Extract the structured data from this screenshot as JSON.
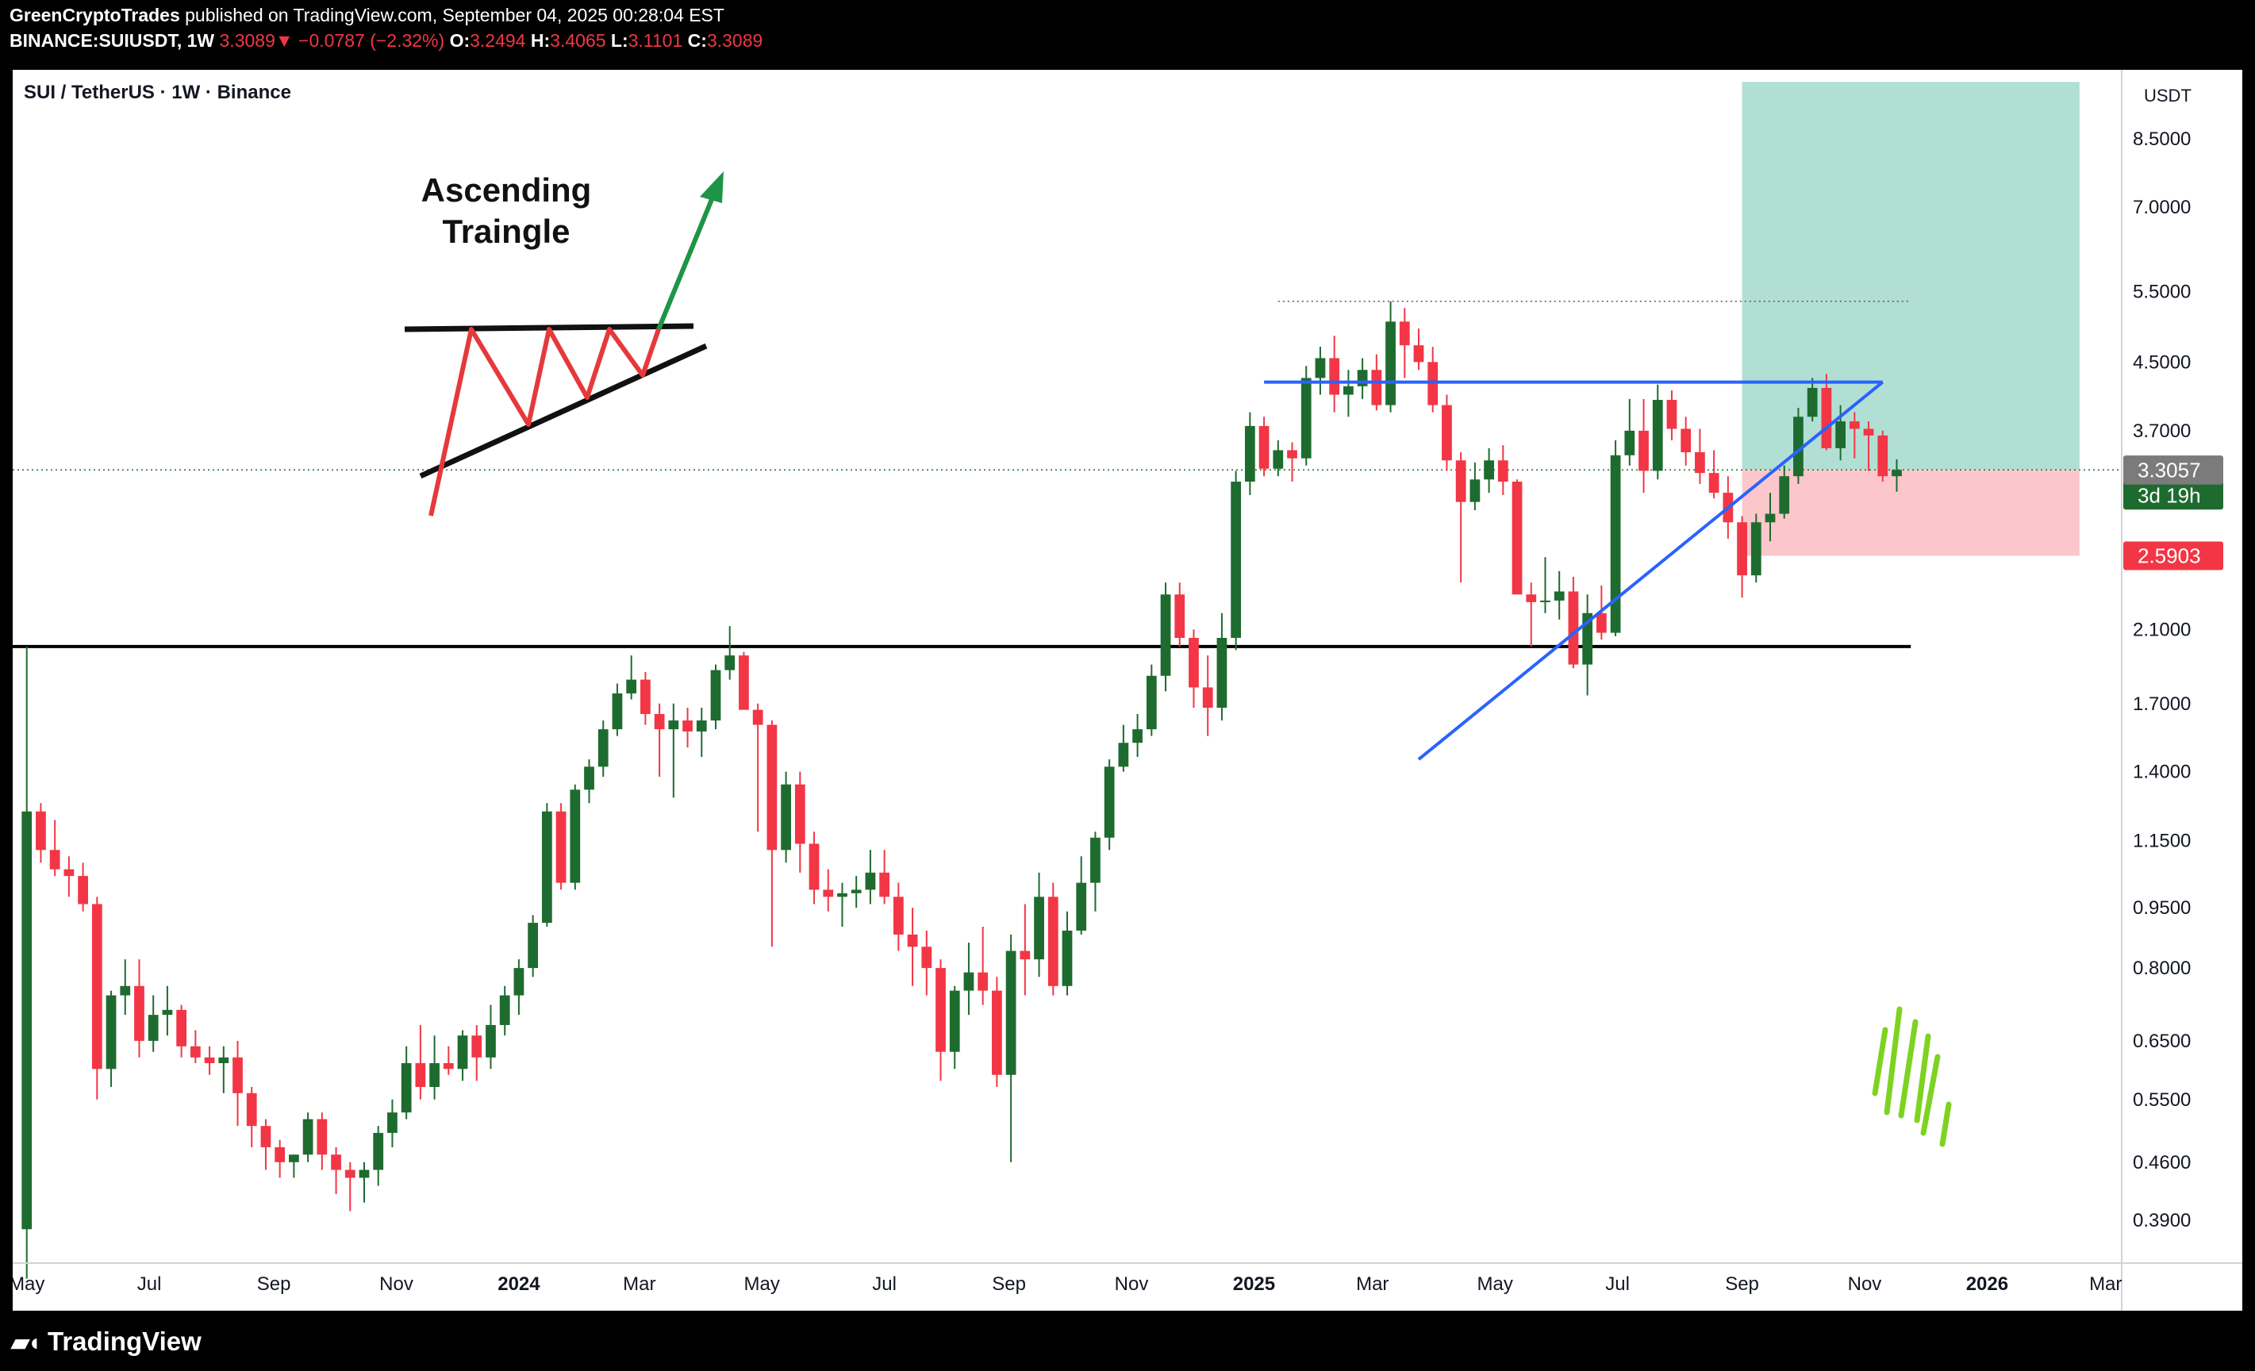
{
  "header": {
    "author": "GreenCryptoTrades",
    "published": " published on TradingView.com, September 04, 2025 00:28:04 EST",
    "symbol": "BINANCE:SUIUSDT, 1W",
    "last": "3.3089",
    "change": "−0.0787 (−2.32%)",
    "o_label": "O:",
    "o_val": "3.2494",
    "h_label": "H:",
    "h_val": "3.4065",
    "l_label": "L:",
    "l_val": "3.1101",
    "c_label": "C:",
    "c_val": "3.3089"
  },
  "chart_title": "SUI / TetherUS · 1W · Binance",
  "branding": "TradingView",
  "colors": {
    "up": "#1e6b2f",
    "down": "#f23645",
    "trendline": "#2962ff",
    "target_zone": "#b2dfd4",
    "stop_zone": "#fbc7cb",
    "support": "#000000"
  },
  "chart_data": {
    "type": "candlestick",
    "scale": "log",
    "currency": "USDT",
    "ylim": [
      0.345,
      10.35
    ],
    "x_range": [
      "2023-04-24",
      "2026-03-09"
    ],
    "price_ticks": [
      "8.5000",
      "7.0000",
      "5.5000",
      "4.5000",
      "3.7000",
      "3.3089",
      "3.3057",
      "2.5903",
      "2.1000",
      "1.7000",
      "1.4000",
      "1.1500",
      "0.9500",
      "0.8000",
      "0.6500",
      "0.5500",
      "0.4600",
      "0.3900"
    ],
    "time_ticks": [
      {
        "date": "2023-05-01",
        "label": "May",
        "bold": false
      },
      {
        "date": "2023-07-01",
        "label": "Jul",
        "bold": false
      },
      {
        "date": "2023-09-01",
        "label": "Sep",
        "bold": false
      },
      {
        "date": "2023-11-01",
        "label": "Nov",
        "bold": false
      },
      {
        "date": "2024-01-01",
        "label": "2024",
        "bold": true
      },
      {
        "date": "2024-03-01",
        "label": "Mar",
        "bold": false
      },
      {
        "date": "2024-05-01",
        "label": "May",
        "bold": false
      },
      {
        "date": "2024-07-01",
        "label": "Jul",
        "bold": false
      },
      {
        "date": "2024-09-01",
        "label": "Sep",
        "bold": false
      },
      {
        "date": "2024-11-01",
        "label": "Nov",
        "bold": false
      },
      {
        "date": "2025-01-01",
        "label": "2025",
        "bold": true
      },
      {
        "date": "2025-03-01",
        "label": "Mar",
        "bold": false
      },
      {
        "date": "2025-05-01",
        "label": "May",
        "bold": false
      },
      {
        "date": "2025-07-01",
        "label": "Jul",
        "bold": false
      },
      {
        "date": "2025-09-01",
        "label": "Sep",
        "bold": false
      },
      {
        "date": "2025-11-01",
        "label": "Nov",
        "bold": false
      },
      {
        "date": "2026-01-01",
        "label": "2026",
        "bold": true
      },
      {
        "date": "2026-03-01",
        "label": "Mar",
        "bold": false
      }
    ],
    "start_date": "2023-05-01",
    "candle_interval_days": 7,
    "candles": [
      [
        0.38,
        2.0,
        0.33,
        1.25
      ],
      [
        1.25,
        1.28,
        1.08,
        1.12
      ],
      [
        1.12,
        1.22,
        1.04,
        1.06
      ],
      [
        1.06,
        1.1,
        0.98,
        1.04
      ],
      [
        1.04,
        1.08,
        0.94,
        0.96
      ],
      [
        0.96,
        0.98,
        0.55,
        0.6
      ],
      [
        0.6,
        0.75,
        0.57,
        0.74
      ],
      [
        0.74,
        0.82,
        0.7,
        0.76
      ],
      [
        0.76,
        0.82,
        0.62,
        0.65
      ],
      [
        0.65,
        0.74,
        0.63,
        0.7
      ],
      [
        0.7,
        0.76,
        0.66,
        0.71
      ],
      [
        0.71,
        0.72,
        0.62,
        0.64
      ],
      [
        0.64,
        0.67,
        0.61,
        0.62
      ],
      [
        0.62,
        0.64,
        0.59,
        0.61
      ],
      [
        0.61,
        0.64,
        0.56,
        0.62
      ],
      [
        0.62,
        0.65,
        0.51,
        0.56
      ],
      [
        0.56,
        0.57,
        0.48,
        0.51
      ],
      [
        0.51,
        0.52,
        0.45,
        0.48
      ],
      [
        0.48,
        0.49,
        0.44,
        0.46
      ],
      [
        0.46,
        0.47,
        0.44,
        0.47
      ],
      [
        0.47,
        0.53,
        0.46,
        0.52
      ],
      [
        0.52,
        0.53,
        0.45,
        0.47
      ],
      [
        0.47,
        0.48,
        0.42,
        0.45
      ],
      [
        0.45,
        0.46,
        0.4,
        0.44
      ],
      [
        0.44,
        0.46,
        0.41,
        0.45
      ],
      [
        0.45,
        0.51,
        0.43,
        0.5
      ],
      [
        0.5,
        0.55,
        0.48,
        0.53
      ],
      [
        0.53,
        0.64,
        0.52,
        0.61
      ],
      [
        0.61,
        0.68,
        0.55,
        0.57
      ],
      [
        0.57,
        0.66,
        0.55,
        0.61
      ],
      [
        0.61,
        0.64,
        0.59,
        0.6
      ],
      [
        0.6,
        0.67,
        0.58,
        0.66
      ],
      [
        0.66,
        0.68,
        0.58,
        0.62
      ],
      [
        0.62,
        0.72,
        0.6,
        0.68
      ],
      [
        0.68,
        0.76,
        0.66,
        0.74
      ],
      [
        0.74,
        0.82,
        0.7,
        0.8
      ],
      [
        0.8,
        0.93,
        0.78,
        0.91
      ],
      [
        0.91,
        1.28,
        0.9,
        1.25
      ],
      [
        1.25,
        1.28,
        1.0,
        1.02
      ],
      [
        1.02,
        1.35,
        1.0,
        1.33
      ],
      [
        1.33,
        1.45,
        1.28,
        1.42
      ],
      [
        1.42,
        1.62,
        1.38,
        1.58
      ],
      [
        1.58,
        1.8,
        1.55,
        1.75
      ],
      [
        1.75,
        1.95,
        1.72,
        1.82
      ],
      [
        1.82,
        1.86,
        1.6,
        1.65
      ],
      [
        1.65,
        1.7,
        1.38,
        1.58
      ],
      [
        1.58,
        1.7,
        1.3,
        1.62
      ],
      [
        1.62,
        1.68,
        1.5,
        1.57
      ],
      [
        1.57,
        1.68,
        1.46,
        1.62
      ],
      [
        1.62,
        1.9,
        1.58,
        1.87
      ],
      [
        1.87,
        2.12,
        1.82,
        1.95
      ],
      [
        1.95,
        1.97,
        1.7,
        1.67
      ],
      [
        1.67,
        1.7,
        1.18,
        1.6
      ],
      [
        1.6,
        1.62,
        0.85,
        1.12
      ],
      [
        1.12,
        1.4,
        1.08,
        1.35
      ],
      [
        1.35,
        1.4,
        1.05,
        1.14
      ],
      [
        1.14,
        1.18,
        0.96,
        1.0
      ],
      [
        1.0,
        1.06,
        0.94,
        0.98
      ],
      [
        0.98,
        1.02,
        0.9,
        0.99
      ],
      [
        0.99,
        1.04,
        0.95,
        1.0
      ],
      [
        1.0,
        1.12,
        0.96,
        1.05
      ],
      [
        1.05,
        1.12,
        0.96,
        0.98
      ],
      [
        0.98,
        1.02,
        0.84,
        0.88
      ],
      [
        0.88,
        0.95,
        0.76,
        0.85
      ],
      [
        0.85,
        0.89,
        0.74,
        0.8
      ],
      [
        0.8,
        0.82,
        0.58,
        0.63
      ],
      [
        0.63,
        0.76,
        0.6,
        0.75
      ],
      [
        0.75,
        0.86,
        0.7,
        0.79
      ],
      [
        0.79,
        0.9,
        0.72,
        0.75
      ],
      [
        0.75,
        0.78,
        0.57,
        0.59
      ],
      [
        0.59,
        0.88,
        0.46,
        0.84
      ],
      [
        0.84,
        0.96,
        0.74,
        0.82
      ],
      [
        0.82,
        1.05,
        0.78,
        0.98
      ],
      [
        0.98,
        1.02,
        0.74,
        0.76
      ],
      [
        0.76,
        0.94,
        0.74,
        0.89
      ],
      [
        0.89,
        1.1,
        0.88,
        1.02
      ],
      [
        1.02,
        1.18,
        0.94,
        1.16
      ],
      [
        1.16,
        1.45,
        1.12,
        1.42
      ],
      [
        1.42,
        1.6,
        1.4,
        1.52
      ],
      [
        1.52,
        1.65,
        1.46,
        1.58
      ],
      [
        1.58,
        1.9,
        1.55,
        1.84
      ],
      [
        1.84,
        2.4,
        1.76,
        2.32
      ],
      [
        2.32,
        2.4,
        2.0,
        2.05
      ],
      [
        2.05,
        2.1,
        1.68,
        1.78
      ],
      [
        1.78,
        1.95,
        1.55,
        1.68
      ],
      [
        1.68,
        2.2,
        1.62,
        2.05
      ],
      [
        2.05,
        3.3,
        1.98,
        3.2
      ],
      [
        3.2,
        3.9,
        3.08,
        3.75
      ],
      [
        3.75,
        3.85,
        3.25,
        3.32
      ],
      [
        3.32,
        3.6,
        3.25,
        3.5
      ],
      [
        3.5,
        3.58,
        3.2,
        3.42
      ],
      [
        3.42,
        4.45,
        3.35,
        4.3
      ],
      [
        4.3,
        4.7,
        4.1,
        4.55
      ],
      [
        4.55,
        4.85,
        3.9,
        4.1
      ],
      [
        4.1,
        4.4,
        3.85,
        4.2
      ],
      [
        4.2,
        4.55,
        4.05,
        4.4
      ],
      [
        4.4,
        4.6,
        3.92,
        3.98
      ],
      [
        3.98,
        5.35,
        3.9,
        5.05
      ],
      [
        5.05,
        5.25,
        4.3,
        4.72
      ],
      [
        4.72,
        4.95,
        4.4,
        4.5
      ],
      [
        4.5,
        4.7,
        3.9,
        3.98
      ],
      [
        3.98,
        4.1,
        3.3,
        3.4
      ],
      [
        3.4,
        3.48,
        2.4,
        3.02
      ],
      [
        3.02,
        3.38,
        2.95,
        3.22
      ],
      [
        3.22,
        3.52,
        3.1,
        3.4
      ],
      [
        3.4,
        3.55,
        3.08,
        3.2
      ],
      [
        3.2,
        3.22,
        2.35,
        2.32
      ],
      [
        2.32,
        2.4,
        2.0,
        2.27
      ],
      [
        2.27,
        2.58,
        2.2,
        2.28
      ],
      [
        2.28,
        2.48,
        2.16,
        2.34
      ],
      [
        2.34,
        2.44,
        1.88,
        1.9
      ],
      [
        1.9,
        2.32,
        1.74,
        2.2
      ],
      [
        2.2,
        2.38,
        2.04,
        2.08
      ],
      [
        2.08,
        3.6,
        2.06,
        3.45
      ],
      [
        3.45,
        4.05,
        3.35,
        3.7
      ],
      [
        3.7,
        4.05,
        3.1,
        3.3
      ],
      [
        3.3,
        4.22,
        3.22,
        4.04
      ],
      [
        4.04,
        4.15,
        3.6,
        3.72
      ],
      [
        3.72,
        3.85,
        3.35,
        3.48
      ],
      [
        3.48,
        3.72,
        3.18,
        3.28
      ],
      [
        3.28,
        3.5,
        3.05,
        3.1
      ],
      [
        3.1,
        3.25,
        2.72,
        2.85
      ],
      [
        2.85,
        2.9,
        2.3,
        2.45
      ],
      [
        2.45,
        2.92,
        2.4,
        2.85
      ],
      [
        2.85,
        3.1,
        2.7,
        2.92
      ],
      [
        2.92,
        3.35,
        2.88,
        3.25
      ],
      [
        3.25,
        3.95,
        3.18,
        3.85
      ],
      [
        3.85,
        4.3,
        3.8,
        4.18
      ],
      [
        4.18,
        4.35,
        3.5,
        3.52
      ],
      [
        3.52,
        3.98,
        3.4,
        3.8
      ],
      [
        3.8,
        3.9,
        3.42,
        3.72
      ],
      [
        3.72,
        3.8,
        3.3,
        3.65
      ],
      [
        3.65,
        3.7,
        3.2,
        3.25
      ],
      [
        3.25,
        3.41,
        3.11,
        3.31
      ]
    ],
    "support_level": 2.0,
    "resistance_level": 4.25,
    "recent_high": 5.35,
    "last_price": 3.3089,
    "ascending_trendline": [
      {
        "date": "2025-03-24",
        "price": 1.45
      },
      {
        "date": "2025-11-10",
        "price": 4.25
      }
    ],
    "resistance_line": {
      "from": "2025-01-06",
      "to": "2025-11-10",
      "price": 4.25
    },
    "position": {
      "entry": 3.3089,
      "target": 10.0,
      "stop": 2.5903,
      "from": "2025-09-01",
      "to": "2026-02-16"
    },
    "price_labels": [
      {
        "text": "3.3089",
        "sub": "3d 19h",
        "price": 3.3089,
        "bg": "#1e6b2f"
      },
      {
        "text": "3.3057",
        "price": 3.3057,
        "bg": "#7b7b7b"
      },
      {
        "text": "2.5903",
        "price": 2.5903,
        "bg": "#f23645"
      }
    ]
  },
  "inset": {
    "title_line1": "Ascending",
    "title_line2": "Traingle"
  }
}
